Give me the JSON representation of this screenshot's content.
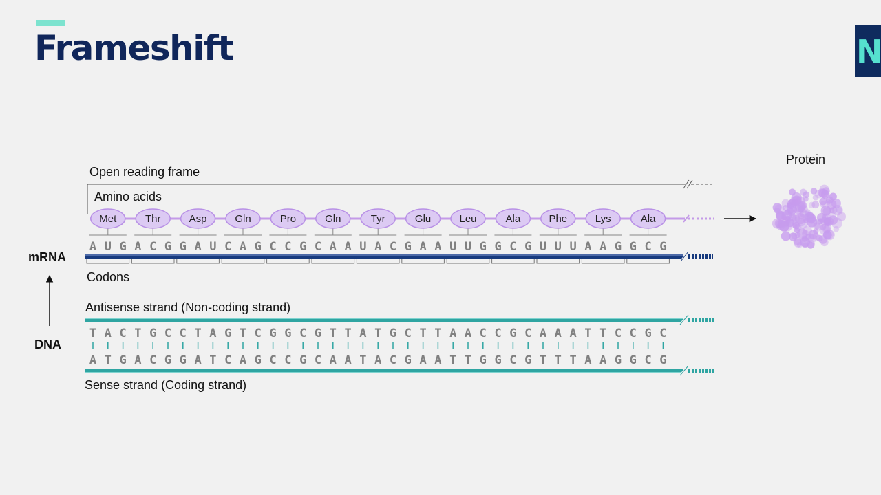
{
  "slide": {
    "title": "Frameshift",
    "logo_text": "Ne"
  },
  "diagram": {
    "labels": {
      "open_reading_frame": "Open reading frame",
      "amino_acids": "Amino acids",
      "protein": "Protein",
      "mrna": "mRNA",
      "codons": "Codons",
      "dna": "DNA",
      "antisense": "Antisense strand (Non-coding strand)",
      "sense": "Sense strand (Coding strand)"
    },
    "amino_acids": [
      "Met",
      "Thr",
      "Asp",
      "Gln",
      "Pro",
      "Gln",
      "Tyr",
      "Glu",
      "Leu",
      "Ala",
      "Phe",
      "Lys",
      "Ala"
    ],
    "mrna_sequence": "AUGACGGAUCAGCCGCAAUACGAAUUGGCGUUUAAGGCG",
    "antisense_sequence": "TACTGCCTAGTCGGCGTTATGCTTAACCGCAAATTCCGC",
    "sense_sequence": "ATGACGGATCAGCCGCAATACGAATTGGCGTTTAAGGCG"
  },
  "colors": {
    "title": "#10265a",
    "accent": "#7de3cf",
    "amino_acid_fill": "#dccaf3",
    "amino_acid_stroke": "#b890e6",
    "backbone": "#c49ae8",
    "mrna_strand": "#173a7e",
    "dna_strand": "#2fa5a2",
    "protein": "#c79cee"
  }
}
